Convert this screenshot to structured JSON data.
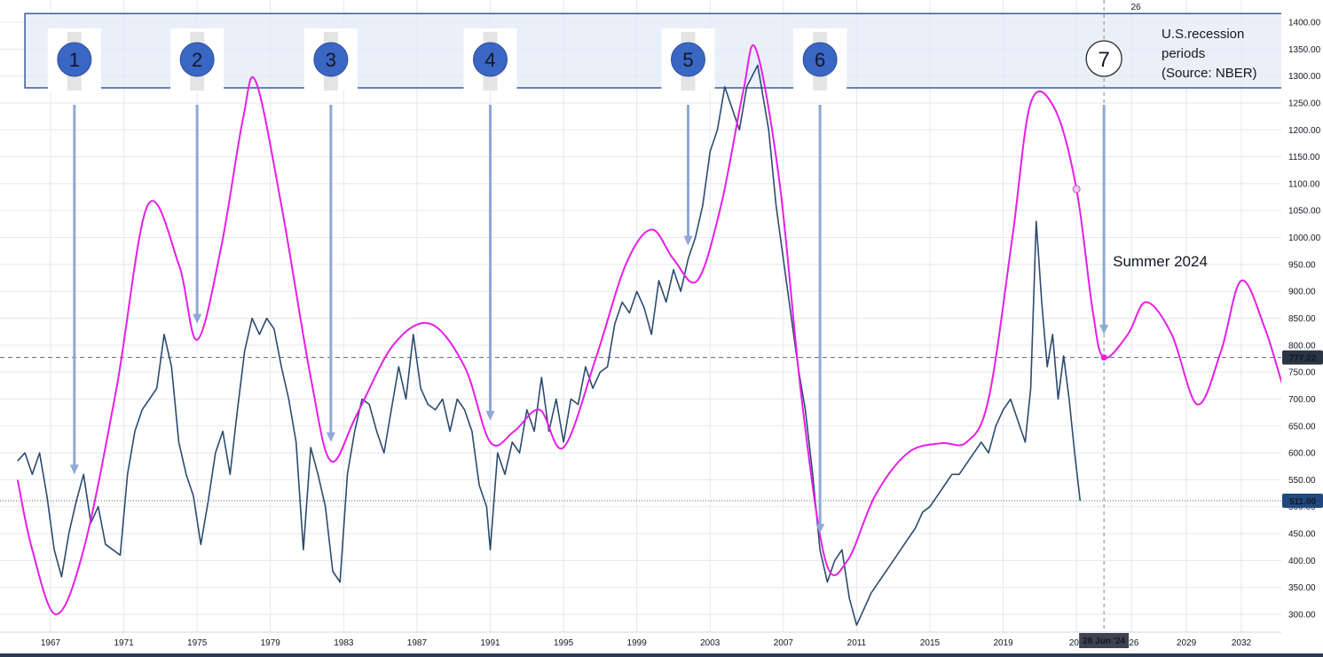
{
  "chart_data": {
    "type": "line",
    "title": "",
    "xlabel": "",
    "ylabel": "",
    "xlim": [
      1965.2,
      2035.4
    ],
    "ylim": [
      274,
      1418
    ],
    "x_ticks": [
      "1967",
      "1971",
      "1975",
      "1979",
      "1983",
      "1987",
      "1991",
      "1995",
      "1999",
      "2003",
      "2007",
      "2011",
      "2015",
      "2019",
      "202",
      "026",
      "2029",
      "2032"
    ],
    "x_tick_years": [
      1967,
      1971,
      1975,
      1979,
      1983,
      1987,
      1991,
      1995,
      1999,
      2003,
      2007,
      2011,
      2015,
      2019,
      2023,
      2026,
      2029,
      2032
    ],
    "y_ticks": [
      "300.00",
      "350.00",
      "400.00",
      "450.00",
      "500.00",
      "550.00",
      "600.00",
      "650.00",
      "700.00",
      "750.00",
      "800.00",
      "850.00",
      "900.00",
      "950.00",
      "1000.00",
      "1050.00",
      "1100.00",
      "1150.00",
      "1200.00",
      "1250.00",
      "1300.00",
      "1350.00",
      "1400.00"
    ],
    "y_tick_values": [
      300,
      350,
      400,
      450,
      500,
      550,
      600,
      650,
      700,
      750,
      800,
      850,
      900,
      950,
      1000,
      1050,
      1100,
      1150,
      1200,
      1250,
      1300,
      1350,
      1400
    ],
    "grid": true,
    "colors": {
      "price": "#2c4b6e",
      "cycle": "#e61ee6",
      "arrow": "#8fa8d6",
      "band_fill": "#e3ebf7",
      "band_border": "#3c5a96",
      "badge": "#3a66c4"
    },
    "series": [
      {
        "values_kind": "price",
        "x": [
          1965.2,
          1965.6,
          1966.0,
          1966.4,
          1966.8,
          1967.2,
          1967.6,
          1968.0,
          1968.4,
          1968.8,
          1969.2,
          1969.6,
          1970.0,
          1970.4,
          1970.8,
          1971.2,
          1971.6,
          1972.0,
          1972.4,
          1972.8,
          1973.2,
          1973.6,
          1974.0,
          1974.4,
          1974.8,
          1975.2,
          1975.6,
          1976.0,
          1976.4,
          1976.8,
          1977.2,
          1977.6,
          1978.0,
          1978.4,
          1978.8,
          1979.2,
          1979.6,
          1980.0,
          1980.4,
          1980.8,
          1981.2,
          1981.6,
          1982.0,
          1982.4,
          1982.8,
          1983.2,
          1983.6,
          1984.0,
          1984.4,
          1984.8,
          1985.2,
          1985.6,
          1986.0,
          1986.4,
          1986.8,
          1987.2,
          1987.6,
          1988.0,
          1988.4,
          1988.8,
          1989.2,
          1989.6,
          1990.0,
          1990.4,
          1990.8,
          1991.0,
          1991.4,
          1991.8,
          1992.2,
          1992.6,
          1993.0,
          1993.4,
          1993.8,
          1994.2,
          1994.6,
          1995.0,
          1995.4,
          1995.8,
          1996.2,
          1996.6,
          1997.0,
          1997.4,
          1997.8,
          1998.2,
          1998.6,
          1999.0,
          1999.4,
          1999.8,
          2000.2,
          2000.6,
          2001.0,
          2001.4,
          2001.8,
          2002.2,
          2002.6,
          2003.0,
          2003.4,
          2003.8,
          2004.2,
          2004.6,
          2005.0,
          2005.3,
          2005.6,
          2005.9,
          2006.2,
          2006.6,
          2007.0,
          2007.4,
          2007.8,
          2008.2,
          2008.6,
          2009.0,
          2009.4,
          2009.8,
          2010.2,
          2010.6,
          2011.0,
          2011.4,
          2011.8,
          2012.2,
          2012.6,
          2013.0,
          2013.4,
          2013.8,
          2014.2,
          2014.6,
          2015.0,
          2015.4,
          2015.8,
          2016.2,
          2016.6,
          2017.0,
          2017.4,
          2017.8,
          2018.2,
          2018.6,
          2019.0,
          2019.4,
          2019.8,
          2020.2,
          2020.5,
          2020.8,
          2021.1,
          2021.4,
          2021.7,
          2022.0,
          2022.3,
          2022.6,
          2022.9,
          2023.2
        ],
        "values": [
          585,
          600,
          560,
          600,
          520,
          420,
          370,
          450,
          510,
          560,
          470,
          500,
          430,
          420,
          410,
          560,
          640,
          680,
          700,
          720,
          820,
          760,
          620,
          560,
          520,
          430,
          510,
          600,
          640,
          560,
          680,
          790,
          850,
          820,
          850,
          830,
          760,
          700,
          620,
          420,
          610,
          560,
          500,
          380,
          360,
          560,
          640,
          700,
          690,
          640,
          600,
          680,
          760,
          700,
          820,
          720,
          690,
          680,
          700,
          640,
          700,
          680,
          640,
          540,
          500,
          420,
          600,
          560,
          620,
          600,
          680,
          640,
          740,
          640,
          700,
          620,
          700,
          690,
          760,
          720,
          750,
          760,
          840,
          880,
          860,
          900,
          870,
          820,
          920,
          880,
          940,
          900,
          960,
          1000,
          1060,
          1160,
          1200,
          1280,
          1240,
          1200,
          1280,
          1300,
          1320,
          1260,
          1200,
          1060,
          960,
          860,
          760,
          680,
          560,
          420,
          360,
          400,
          420,
          330,
          280,
          310,
          340,
          360,
          380,
          400,
          420,
          440,
          460,
          490,
          500,
          520,
          540,
          560,
          560,
          580,
          600,
          620,
          600,
          650,
          680,
          700,
          660,
          620,
          720,
          1030,
          880,
          760,
          820,
          700,
          780,
          700,
          600,
          511
        ]
      },
      {
        "values_kind": "cycle",
        "x": [
          1965.2,
          1966.0,
          1967.3,
          1968.8,
          1970.6,
          1972.3,
          1974.0,
          1975.0,
          1976.3,
          1977.5,
          1978.2,
          1979.6,
          1981.2,
          1982.3,
          1983.7,
          1985.7,
          1987.7,
          1989.6,
          1991.0,
          1992.3,
          1993.7,
          1995.0,
          1996.8,
          1998.4,
          1999.8,
          2001.0,
          2002.3,
          2003.6,
          2004.8,
          2005.5,
          2006.8,
          2008.0,
          2009.3,
          2010.5,
          2012.0,
          2013.8,
          2015.6,
          2017.0,
          2018.2,
          2019.5,
          2020.5,
          2021.8,
          2023.0,
          2023.9,
          2024.5,
          2025.8,
          2026.8,
          2028.2,
          2029.6,
          2030.9,
          2032.0,
          2033.3,
          2034.5,
          2035.4
        ],
        "values": [
          550,
          420,
          300,
          420,
          720,
          1060,
          950,
          810,
          980,
          1220,
          1290,
          1060,
          740,
          585,
          670,
          800,
          840,
          760,
          620,
          640,
          680,
          610,
          780,
          950,
          1015,
          960,
          920,
          1060,
          1270,
          1350,
          1100,
          700,
          400,
          400,
          520,
          600,
          618,
          620,
          700,
          1000,
          1250,
          1240,
          1090,
          860,
          777,
          820,
          880,
          820,
          690,
          790,
          920,
          830,
          700,
          640
        ]
      }
    ],
    "horizontal_lines": [
      {
        "value": 777.22,
        "label": "777.22",
        "style": "dashed"
      },
      {
        "value": 511.0,
        "label": "511.00",
        "style": "dotted"
      }
    ],
    "crosshair": {
      "x": 2024.5,
      "x_label": "28 Jun '24",
      "top_label": "26",
      "marker_value": 777.22
    },
    "highlight_point": {
      "x": 2023.0,
      "value": 1090
    },
    "recession_band": {
      "value_range": [
        1278,
        1416
      ],
      "x_range": [
        1965.6,
        2035.4
      ],
      "legend_lines": [
        "U.S.recession",
        "periods",
        "(Source: NBER)"
      ]
    },
    "recession_markers": [
      {
        "label": "1",
        "year": 1968.3,
        "arrow_to_value": 560
      },
      {
        "label": "2",
        "year": 1975.0,
        "arrow_to_value": 840
      },
      {
        "label": "3",
        "year": 1982.3,
        "arrow_to_value": 620
      },
      {
        "label": "4",
        "year": 1991.0,
        "arrow_to_value": 660
      },
      {
        "label": "5",
        "year": 2001.8,
        "arrow_to_value": 985
      },
      {
        "label": "6",
        "year": 2009.0,
        "arrow_to_value": 450
      },
      {
        "label": "7",
        "year": 2024.5,
        "arrow_to_value": 820,
        "style": "forecast"
      }
    ],
    "annotations": [
      {
        "text": "Summer 2024",
        "x": 2024.5,
        "value": 950
      }
    ]
  }
}
